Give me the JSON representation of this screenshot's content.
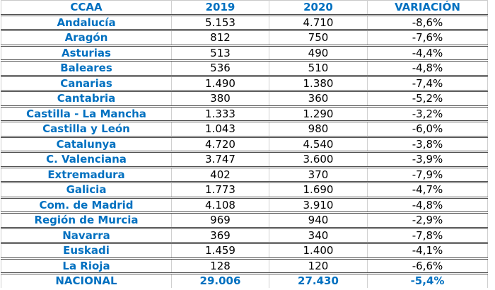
{
  "colors": {
    "accent_blue": "#0070C0",
    "number_text": "#000000",
    "row_border": "#4f4f4f",
    "column_border": "#d0d0d0",
    "background": "#ffffff"
  },
  "chart_data": {
    "type": "table",
    "columns": [
      "CCAA",
      "2019",
      "2020",
      "VARIACIÓN"
    ],
    "rows": [
      {
        "ccaa": "Andalucía",
        "v2019": "5.153",
        "v2020": "4.710",
        "var": "-8,6%"
      },
      {
        "ccaa": "Aragón",
        "v2019": "812",
        "v2020": "750",
        "var": "-7,6%"
      },
      {
        "ccaa": "Asturias",
        "v2019": "513",
        "v2020": "490",
        "var": "-4,4%"
      },
      {
        "ccaa": "Baleares",
        "v2019": "536",
        "v2020": "510",
        "var": "-4,8%"
      },
      {
        "ccaa": "Canarias",
        "v2019": "1.490",
        "v2020": "1.380",
        "var": "-7,4%"
      },
      {
        "ccaa": "Cantabria",
        "v2019": "380",
        "v2020": "360",
        "var": "-5,2%"
      },
      {
        "ccaa": "Castilla - La Mancha",
        "v2019": "1.333",
        "v2020": "1.290",
        "var": "-3,2%"
      },
      {
        "ccaa": "Castilla y León",
        "v2019": "1.043",
        "v2020": "980",
        "var": "-6,0%"
      },
      {
        "ccaa": "Catalunya",
        "v2019": "4.720",
        "v2020": "4.540",
        "var": "-3,8%"
      },
      {
        "ccaa": "C. Valenciana",
        "v2019": "3.747",
        "v2020": "3.600",
        "var": "-3,9%"
      },
      {
        "ccaa": "Extremadura",
        "v2019": "402",
        "v2020": "370",
        "var": "-7,9%"
      },
      {
        "ccaa": "Galicia",
        "v2019": "1.773",
        "v2020": "1.690",
        "var": "-4,7%"
      },
      {
        "ccaa": "Com. de Madrid",
        "v2019": "4.108",
        "v2020": "3.910",
        "var": "-4,8%"
      },
      {
        "ccaa": "Región de Murcia",
        "v2019": "969",
        "v2020": "940",
        "var": "-2,9%"
      },
      {
        "ccaa": "Navarra",
        "v2019": "369",
        "v2020": "340",
        "var": "-7,8%"
      },
      {
        "ccaa": "Euskadi",
        "v2019": "1.459",
        "v2020": "1.400",
        "var": "-4,1%"
      },
      {
        "ccaa": "La Rioja",
        "v2019": "128",
        "v2020": "120",
        "var": "-6,6%"
      }
    ],
    "total_row": {
      "ccaa": "NACIONAL",
      "v2019": "29.006",
      "v2020": "27.430",
      "var": "-5,4%"
    }
  }
}
